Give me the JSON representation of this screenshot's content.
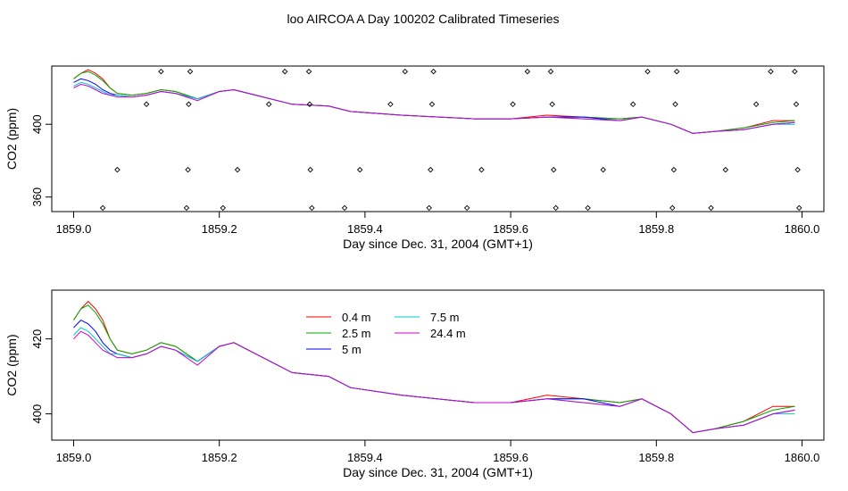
{
  "title": "loo AIRCOA A  Day 100202  Calibrated Timeseries",
  "chart_data": [
    {
      "type": "scatter",
      "title": "loo AIRCOA A  Day 100202  Calibrated Timeseries",
      "xlabel": "Day since Dec. 31, 2004 (GMT+1)",
      "ylabel": "CO2 (ppm)",
      "xlim": [
        1858.97,
        1860.03
      ],
      "ylim": [
        352,
        432
      ],
      "grid": false,
      "x_ticks": [
        1859.0,
        1859.2,
        1859.4,
        1859.6,
        1859.8,
        1860.0
      ],
      "x_tick_labels": [
        "1859.0",
        "1859.2",
        "1859.4",
        "1859.6",
        "1859.8",
        "1860.0"
      ],
      "y_ticks": [
        360,
        400
      ],
      "y_tick_labels": [
        "360",
        "400"
      ],
      "markers": "open-diamond",
      "calibration_points": [
        {
          "x": 1859.04,
          "y": 354
        },
        {
          "x": 1859.06,
          "y": 375
        },
        {
          "x": 1859.1,
          "y": 411
        },
        {
          "x": 1859.12,
          "y": 429
        },
        {
          "x": 1859.155,
          "y": 354
        },
        {
          "x": 1859.157,
          "y": 375
        },
        {
          "x": 1859.158,
          "y": 411
        },
        {
          "x": 1859.16,
          "y": 429
        },
        {
          "x": 1859.205,
          "y": 354
        },
        {
          "x": 1859.225,
          "y": 375
        },
        {
          "x": 1859.268,
          "y": 411
        },
        {
          "x": 1859.29,
          "y": 429
        },
        {
          "x": 1859.323,
          "y": 429
        },
        {
          "x": 1859.324,
          "y": 411
        },
        {
          "x": 1859.325,
          "y": 375
        },
        {
          "x": 1859.327,
          "y": 354
        },
        {
          "x": 1859.372,
          "y": 354
        },
        {
          "x": 1859.393,
          "y": 375
        },
        {
          "x": 1859.435,
          "y": 411
        },
        {
          "x": 1859.455,
          "y": 429
        },
        {
          "x": 1859.488,
          "y": 354
        },
        {
          "x": 1859.49,
          "y": 375
        },
        {
          "x": 1859.492,
          "y": 411
        },
        {
          "x": 1859.494,
          "y": 429
        },
        {
          "x": 1859.54,
          "y": 354
        },
        {
          "x": 1859.56,
          "y": 375
        },
        {
          "x": 1859.603,
          "y": 411
        },
        {
          "x": 1859.623,
          "y": 429
        },
        {
          "x": 1859.655,
          "y": 429
        },
        {
          "x": 1859.657,
          "y": 411
        },
        {
          "x": 1859.659,
          "y": 375
        },
        {
          "x": 1859.662,
          "y": 354
        },
        {
          "x": 1859.706,
          "y": 354
        },
        {
          "x": 1859.727,
          "y": 375
        },
        {
          "x": 1859.768,
          "y": 411
        },
        {
          "x": 1859.788,
          "y": 429
        },
        {
          "x": 1859.822,
          "y": 354
        },
        {
          "x": 1859.824,
          "y": 375
        },
        {
          "x": 1859.826,
          "y": 411
        },
        {
          "x": 1859.828,
          "y": 429
        },
        {
          "x": 1859.875,
          "y": 354
        },
        {
          "x": 1859.895,
          "y": 375
        },
        {
          "x": 1859.937,
          "y": 411
        },
        {
          "x": 1859.957,
          "y": 429
        },
        {
          "x": 1859.99,
          "y": 429
        },
        {
          "x": 1859.992,
          "y": 411
        },
        {
          "x": 1859.994,
          "y": 375
        },
        {
          "x": 1859.996,
          "y": 354
        }
      ],
      "series": [
        {
          "color": "#ff0000",
          "x": [
            1859.0,
            1859.01,
            1859.02,
            1859.03,
            1859.04,
            1859.05,
            1859.06,
            1859.08,
            1859.1,
            1859.12,
            1859.14,
            1859.17,
            1859.2,
            1859.22,
            1859.25,
            1859.3,
            1859.35,
            1859.38,
            1859.45,
            1859.55,
            1859.6,
            1859.65,
            1859.7,
            1859.75,
            1859.78,
            1859.82,
            1859.85,
            1859.88,
            1859.92,
            1859.96,
            1859.99
          ],
          "y": [
            425,
            428,
            430,
            428,
            425,
            420,
            417,
            416,
            417,
            419,
            418,
            414,
            418,
            419,
            416,
            411,
            410,
            407,
            405,
            403,
            403,
            405,
            404,
            403,
            404,
            400,
            395,
            396,
            398,
            402,
            402
          ]
        },
        {
          "color": "#00aa00",
          "x": [
            1859.0,
            1859.01,
            1859.02,
            1859.03,
            1859.04,
            1859.05,
            1859.06,
            1859.08,
            1859.1,
            1859.12,
            1859.14,
            1859.17,
            1859.2,
            1859.22,
            1859.25,
            1859.3,
            1859.35,
            1859.38,
            1859.45,
            1859.55,
            1859.6,
            1859.65,
            1859.7,
            1859.75,
            1859.78,
            1859.82,
            1859.85,
            1859.88,
            1859.92,
            1859.96,
            1859.99
          ],
          "y": [
            425,
            428,
            429,
            427,
            424,
            420,
            417,
            416,
            417,
            419,
            418,
            414,
            418,
            419,
            416,
            411,
            410,
            407,
            405,
            403,
            403,
            404,
            404,
            403,
            404,
            400,
            395,
            396,
            398,
            401,
            402
          ]
        },
        {
          "color": "#0000ff",
          "x": [
            1859.0,
            1859.01,
            1859.02,
            1859.03,
            1859.04,
            1859.05,
            1859.06,
            1859.08,
            1859.1,
            1859.12,
            1859.14,
            1859.17,
            1859.2,
            1859.22,
            1859.25,
            1859.3,
            1859.35,
            1859.38,
            1859.45,
            1859.55,
            1859.6,
            1859.65,
            1859.7,
            1859.75,
            1859.78,
            1859.82,
            1859.85,
            1859.88,
            1859.92,
            1859.96,
            1859.99
          ],
          "y": [
            423,
            425,
            424,
            422,
            419,
            417,
            416,
            415,
            416,
            418,
            417,
            414,
            418,
            419,
            416,
            411,
            410,
            407,
            405,
            403,
            403,
            404,
            404,
            402,
            404,
            400,
            395,
            396,
            397,
            400,
            401
          ]
        },
        {
          "color": "#00cccc",
          "x": [
            1859.0,
            1859.01,
            1859.02,
            1859.03,
            1859.04,
            1859.05,
            1859.06,
            1859.08,
            1859.1,
            1859.12,
            1859.14,
            1859.17,
            1859.2,
            1859.22,
            1859.25,
            1859.3,
            1859.35,
            1859.38,
            1859.45,
            1859.55,
            1859.6,
            1859.65,
            1859.7,
            1859.75,
            1859.78,
            1859.82,
            1859.85,
            1859.88,
            1859.92,
            1859.96,
            1859.99
          ],
          "y": [
            421,
            423,
            422,
            420,
            418,
            416,
            416,
            415,
            416,
            418,
            417,
            414,
            418,
            419,
            416,
            411,
            410,
            407,
            405,
            403,
            403,
            404,
            403,
            402,
            404,
            400,
            395,
            396,
            397,
            400,
            400
          ]
        },
        {
          "color": "#cc00cc",
          "x": [
            1859.0,
            1859.01,
            1859.02,
            1859.03,
            1859.04,
            1859.05,
            1859.06,
            1859.08,
            1859.1,
            1859.12,
            1859.14,
            1859.17,
            1859.2,
            1859.22,
            1859.25,
            1859.3,
            1859.35,
            1859.38,
            1859.45,
            1859.55,
            1859.6,
            1859.65,
            1859.7,
            1859.75,
            1859.78,
            1859.82,
            1859.85,
            1859.88,
            1859.92,
            1859.96,
            1859.99
          ],
          "y": [
            420,
            422,
            421,
            419,
            417,
            416,
            415,
            415,
            416,
            418,
            417,
            413,
            418,
            419,
            416,
            411,
            410,
            407,
            405,
            403,
            403,
            404,
            403,
            402,
            404,
            400,
            395,
            396,
            397,
            400,
            401
          ]
        }
      ]
    },
    {
      "type": "line",
      "xlabel": "Day since Dec. 31, 2004 (GMT+1)",
      "ylabel": "CO2 (ppm)",
      "xlim": [
        1858.97,
        1860.03
      ],
      "ylim": [
        393,
        433
      ],
      "grid": false,
      "x_ticks": [
        1859.0,
        1859.2,
        1859.4,
        1859.6,
        1859.8,
        1860.0
      ],
      "x_tick_labels": [
        "1859.0",
        "1859.2",
        "1859.4",
        "1859.6",
        "1859.8",
        "1860.0"
      ],
      "y_ticks": [
        400,
        420
      ],
      "y_tick_labels": [
        "400",
        "420"
      ],
      "legend": {
        "placement": "top-center",
        "columns": 2
      },
      "series": [
        {
          "name": "0.4 m",
          "color": "#ff0000",
          "x": [
            1859.0,
            1859.01,
            1859.02,
            1859.03,
            1859.04,
            1859.05,
            1859.06,
            1859.08,
            1859.1,
            1859.12,
            1859.14,
            1859.17,
            1859.2,
            1859.22,
            1859.25,
            1859.3,
            1859.35,
            1859.38,
            1859.45,
            1859.55,
            1859.6,
            1859.65,
            1859.7,
            1859.75,
            1859.78,
            1859.82,
            1859.85,
            1859.88,
            1859.92,
            1859.96,
            1859.99
          ],
          "y": [
            425,
            428,
            430,
            428,
            425,
            420,
            417,
            416,
            417,
            419,
            418,
            414,
            418,
            419,
            416,
            411,
            410,
            407,
            405,
            403,
            403,
            405,
            404,
            403,
            404,
            400,
            395,
            396,
            398,
            402,
            402
          ]
        },
        {
          "name": "2.5 m",
          "color": "#00aa00",
          "x": [
            1859.0,
            1859.01,
            1859.02,
            1859.03,
            1859.04,
            1859.05,
            1859.06,
            1859.08,
            1859.1,
            1859.12,
            1859.14,
            1859.17,
            1859.2,
            1859.22,
            1859.25,
            1859.3,
            1859.35,
            1859.38,
            1859.45,
            1859.55,
            1859.6,
            1859.65,
            1859.7,
            1859.75,
            1859.78,
            1859.82,
            1859.85,
            1859.88,
            1859.92,
            1859.96,
            1859.99
          ],
          "y": [
            425,
            428,
            429,
            427,
            424,
            420,
            417,
            416,
            417,
            419,
            418,
            414,
            418,
            419,
            416,
            411,
            410,
            407,
            405,
            403,
            403,
            404,
            404,
            403,
            404,
            400,
            395,
            396,
            398,
            401,
            402
          ]
        },
        {
          "name": "5 m",
          "color": "#0000ff",
          "x": [
            1859.0,
            1859.01,
            1859.02,
            1859.03,
            1859.04,
            1859.05,
            1859.06,
            1859.08,
            1859.1,
            1859.12,
            1859.14,
            1859.17,
            1859.2,
            1859.22,
            1859.25,
            1859.3,
            1859.35,
            1859.38,
            1859.45,
            1859.55,
            1859.6,
            1859.65,
            1859.7,
            1859.75,
            1859.78,
            1859.82,
            1859.85,
            1859.88,
            1859.92,
            1859.96,
            1859.99
          ],
          "y": [
            423,
            425,
            424,
            422,
            419,
            417,
            416,
            415,
            416,
            418,
            417,
            414,
            418,
            419,
            416,
            411,
            410,
            407,
            405,
            403,
            403,
            404,
            404,
            402,
            404,
            400,
            395,
            396,
            397,
            400,
            401
          ]
        },
        {
          "name": "7.5 m",
          "color": "#00cccc",
          "x": [
            1859.0,
            1859.01,
            1859.02,
            1859.03,
            1859.04,
            1859.05,
            1859.06,
            1859.08,
            1859.1,
            1859.12,
            1859.14,
            1859.17,
            1859.2,
            1859.22,
            1859.25,
            1859.3,
            1859.35,
            1859.38,
            1859.45,
            1859.55,
            1859.6,
            1859.65,
            1859.7,
            1859.75,
            1859.78,
            1859.82,
            1859.85,
            1859.88,
            1859.92,
            1859.96,
            1859.99
          ],
          "y": [
            421,
            423,
            422,
            420,
            418,
            416,
            416,
            415,
            416,
            418,
            417,
            414,
            418,
            419,
            416,
            411,
            410,
            407,
            405,
            403,
            403,
            404,
            403,
            402,
            404,
            400,
            395,
            396,
            397,
            400,
            400
          ]
        },
        {
          "name": "24.4 m",
          "color": "#cc00cc",
          "x": [
            1859.0,
            1859.01,
            1859.02,
            1859.03,
            1859.04,
            1859.05,
            1859.06,
            1859.08,
            1859.1,
            1859.12,
            1859.14,
            1859.17,
            1859.2,
            1859.22,
            1859.25,
            1859.3,
            1859.35,
            1859.38,
            1859.45,
            1859.55,
            1859.6,
            1859.65,
            1859.7,
            1859.75,
            1859.78,
            1859.82,
            1859.85,
            1859.88,
            1859.92,
            1859.96,
            1859.99
          ],
          "y": [
            420,
            422,
            421,
            419,
            417,
            416,
            415,
            415,
            416,
            418,
            417,
            413,
            418,
            419,
            416,
            411,
            410,
            407,
            405,
            403,
            403,
            404,
            403,
            402,
            404,
            400,
            395,
            396,
            397,
            400,
            401
          ]
        }
      ]
    }
  ]
}
